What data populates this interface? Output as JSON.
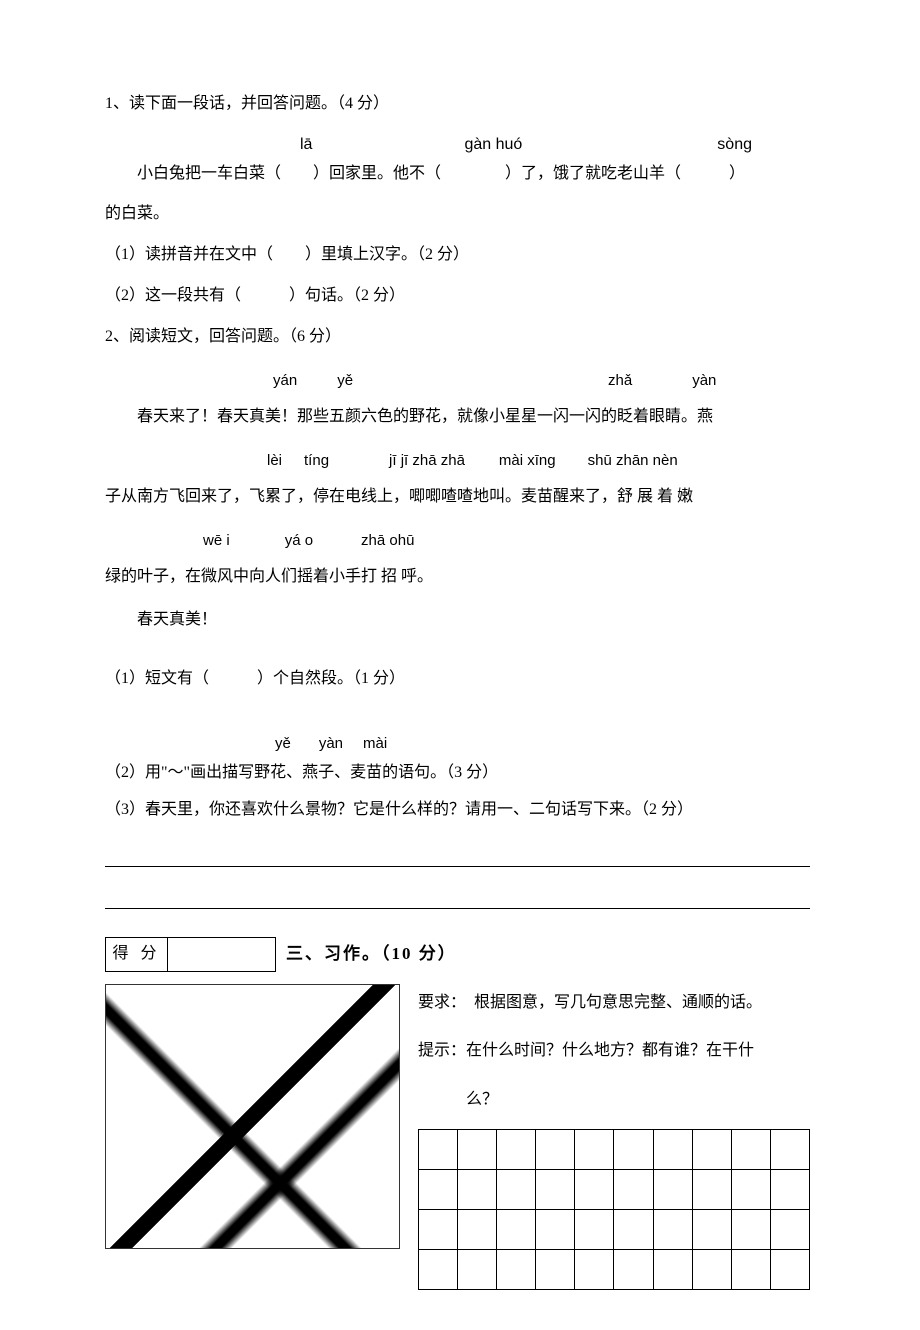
{
  "q1": {
    "prompt": "1、读下面一段话，并回答问题。（4 分）",
    "pinyin": {
      "p1": "lā",
      "p2": "gàn  huó",
      "p3": "sòng"
    },
    "sentence_line1": "小白兔把一车白菜（　　）回家里。他不（　　　　）了，饿了就吃老山羊（　　　）",
    "sentence_line2": "的白菜。",
    "sub1": "（1）读拼音并在文中（　　）里填上汉字。（2 分）",
    "sub2": "（2）这一段共有（　　　）句话。（2 分）"
  },
  "q2": {
    "prompt": "2、阅读短文，回答问题。（6 分）",
    "r1_pinyin": {
      "a": "yán",
      "b": "yě",
      "c": "zhǎ",
      "d": "yàn"
    },
    "r1_cn_pre": "春天来了！春天真美！那些五颜六色的野花，就像小星星一闪一闪的眨着眼睛。燕",
    "r2_pinyin": {
      "a": "lèi",
      "b": "tíng",
      "c": "jī jī zhā zhā",
      "d": "mài xīng",
      "e": "shū zhān  nèn"
    },
    "r2_cn": "子从南方飞回来了，飞累了，停在电线上，唧唧喳喳地叫。麦苗醒来了，舒 展 着 嫩",
    "r3_pinyin": {
      "a": "wē i",
      "b": "yá o",
      "c": "zhā ohū"
    },
    "r3_cn": "绿的叶子，在微风中向人们摇着小手打 招 呼。",
    "r4_cn": "春天真美！",
    "sub1": "（1）短文有（　　　）个自然段。（1 分）",
    "sub2_pinyin": {
      "a": "yě",
      "b": "yàn",
      "c": "mài"
    },
    "sub2": "（2）用\"～\"画出描写野花、燕子、麦苗的语句。（3 分）",
    "sub3": "（3）春天里，你还喜欢什么景物？它是什么样的？请用一、二句话写下来。（2 分）"
  },
  "section3": {
    "score_label": "得 分",
    "title": "三、习作。（10 分）",
    "req": "要求：　根据图意，写几句意思完整、通顺的话。",
    "hint1": "提示：在什么时间？什么地方？都有谁？在干什",
    "hint2": "么？",
    "grid_cols": 10,
    "grid_rows": 4
  },
  "style": {
    "bg": "#ffffff",
    "fg": "#000000",
    "font_cn": "SimSun",
    "base_size": 16
  }
}
